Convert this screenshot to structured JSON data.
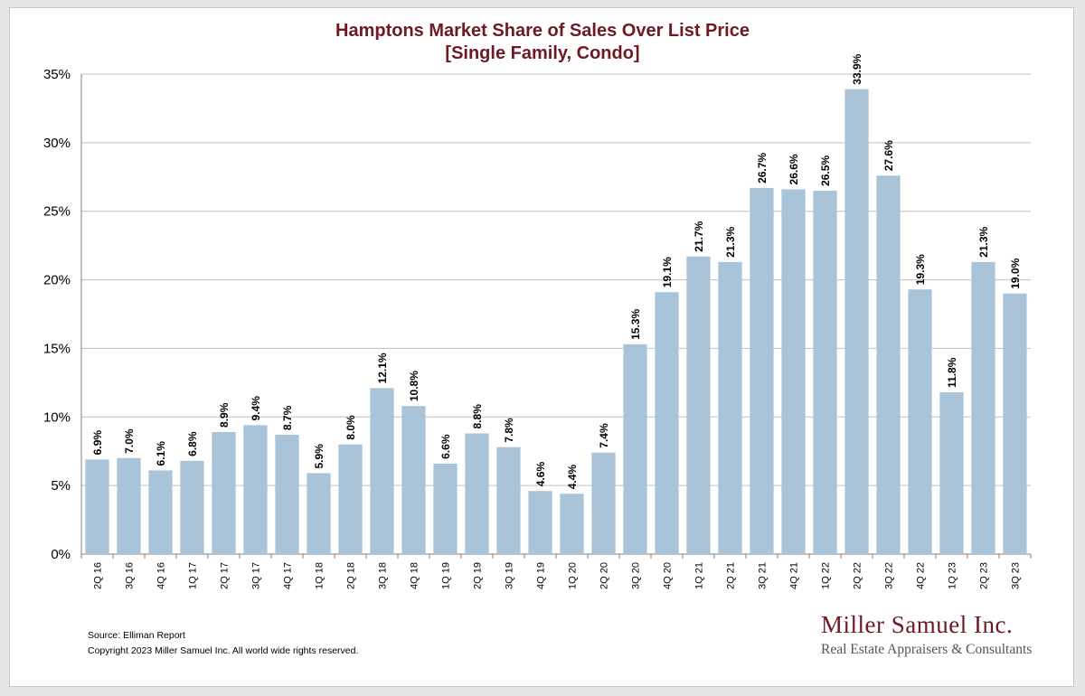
{
  "chart_data": {
    "type": "bar",
    "title": "Hamptons Market Share of Sales Over List Price",
    "subtitle": "[Single Family, Condo]",
    "xlabel": "",
    "ylabel": "",
    "ylim": [
      0,
      35
    ],
    "yticks": [
      0,
      5,
      10,
      15,
      20,
      25,
      30,
      35
    ],
    "ytick_labels": [
      "0%",
      "5%",
      "10%",
      "15%",
      "20%",
      "25%",
      "30%",
      "35%"
    ],
    "grid": "horizontal",
    "bar_color": "#a9c4d8",
    "categories": [
      "2Q 16",
      "3Q 16",
      "4Q 16",
      "1Q 17",
      "2Q 17",
      "3Q 17",
      "4Q 17",
      "1Q 18",
      "2Q 18",
      "3Q 18",
      "4Q 18",
      "1Q 19",
      "2Q 19",
      "3Q 19",
      "4Q 19",
      "1Q 20",
      "2Q 20",
      "3Q 20",
      "4Q 20",
      "1Q 21",
      "2Q 21",
      "3Q 21",
      "4Q 21",
      "1Q 22",
      "2Q 22",
      "3Q 22",
      "4Q 22",
      "1Q 23",
      "2Q 23",
      "3Q 23"
    ],
    "values": [
      6.9,
      7.0,
      6.1,
      6.8,
      8.9,
      9.4,
      8.7,
      5.9,
      8.0,
      12.1,
      10.8,
      6.6,
      8.8,
      7.8,
      4.6,
      4.4,
      7.4,
      15.3,
      19.1,
      21.7,
      21.3,
      26.7,
      26.6,
      26.5,
      33.9,
      27.6,
      19.3,
      11.8,
      21.3,
      19.0
    ],
    "data_labels": [
      "6.9%",
      "7.0%",
      "6.1%",
      "6.8%",
      "8.9%",
      "9.4%",
      "8.7%",
      "5.9%",
      "8.0%",
      "12.1%",
      "10.8%",
      "6.6%",
      "8.8%",
      "7.8%",
      "4.6%",
      "4.4%",
      "7.4%",
      "15.3%",
      "19.1%",
      "21.7%",
      "21.3%",
      "26.7%",
      "26.6%",
      "26.5%",
      "33.9%",
      "27.6%",
      "19.3%",
      "11.8%",
      "21.3%",
      "19.0%"
    ]
  },
  "footer": {
    "source": "Source: Elliman Report",
    "copyright": "Copyright 2023 Miller Samuel Inc.  All world wide rights reserved."
  },
  "logo": {
    "name": "Miller Samuel Inc.",
    "tagline": "Real Estate Appraisers & Consultants"
  },
  "colors": {
    "title": "#6d1a24",
    "bars": "#a9c4d8",
    "grid": "#c0c0c0"
  }
}
